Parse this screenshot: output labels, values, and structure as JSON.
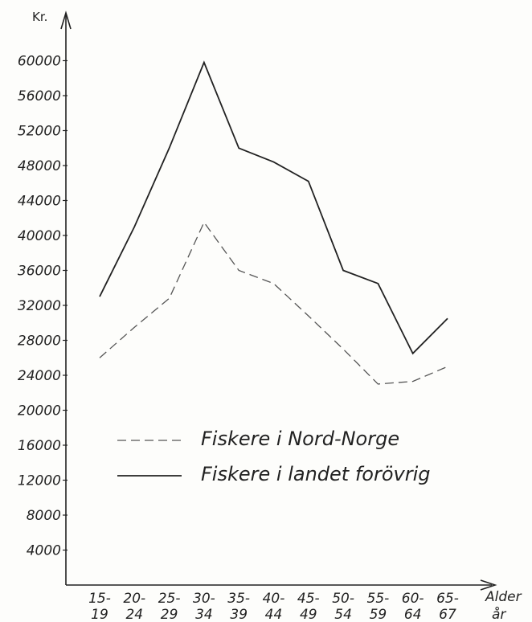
{
  "chart_data": {
    "type": "line",
    "y_unit_label": "Kr.",
    "x_axis_label": [
      "Alder",
      "år"
    ],
    "categories": [
      [
        "15-",
        "19"
      ],
      [
        "20-",
        "24"
      ],
      [
        "25-",
        "29"
      ],
      [
        "30-",
        "34"
      ],
      [
        "35-",
        "39"
      ],
      [
        "40-",
        "44"
      ],
      [
        "45-",
        "49"
      ],
      [
        "50-",
        "54"
      ],
      [
        "55-",
        "59"
      ],
      [
        "60-",
        "64"
      ],
      [
        "65-",
        "67"
      ]
    ],
    "y_ticks": [
      4000,
      8000,
      12000,
      16000,
      20000,
      24000,
      28000,
      32000,
      36000,
      40000,
      44000,
      48000,
      52000,
      56000,
      60000
    ],
    "ylim": [
      0,
      63000
    ],
    "grid": false,
    "legend_position": "center-left",
    "series": [
      {
        "name": "Fiskere i Nord-Norge",
        "style": "dashed",
        "color": "#555555",
        "values": [
          26000,
          29500,
          32800,
          41500,
          36000,
          34500,
          30800,
          27000,
          23000,
          23300,
          25000
        ]
      },
      {
        "name": "Fiskere i landet forövrig",
        "style": "solid",
        "color": "#222222",
        "values": [
          33000,
          41000,
          50000,
          59800,
          50000,
          48400,
          46200,
          36000,
          34500,
          26500,
          30500
        ]
      }
    ]
  }
}
